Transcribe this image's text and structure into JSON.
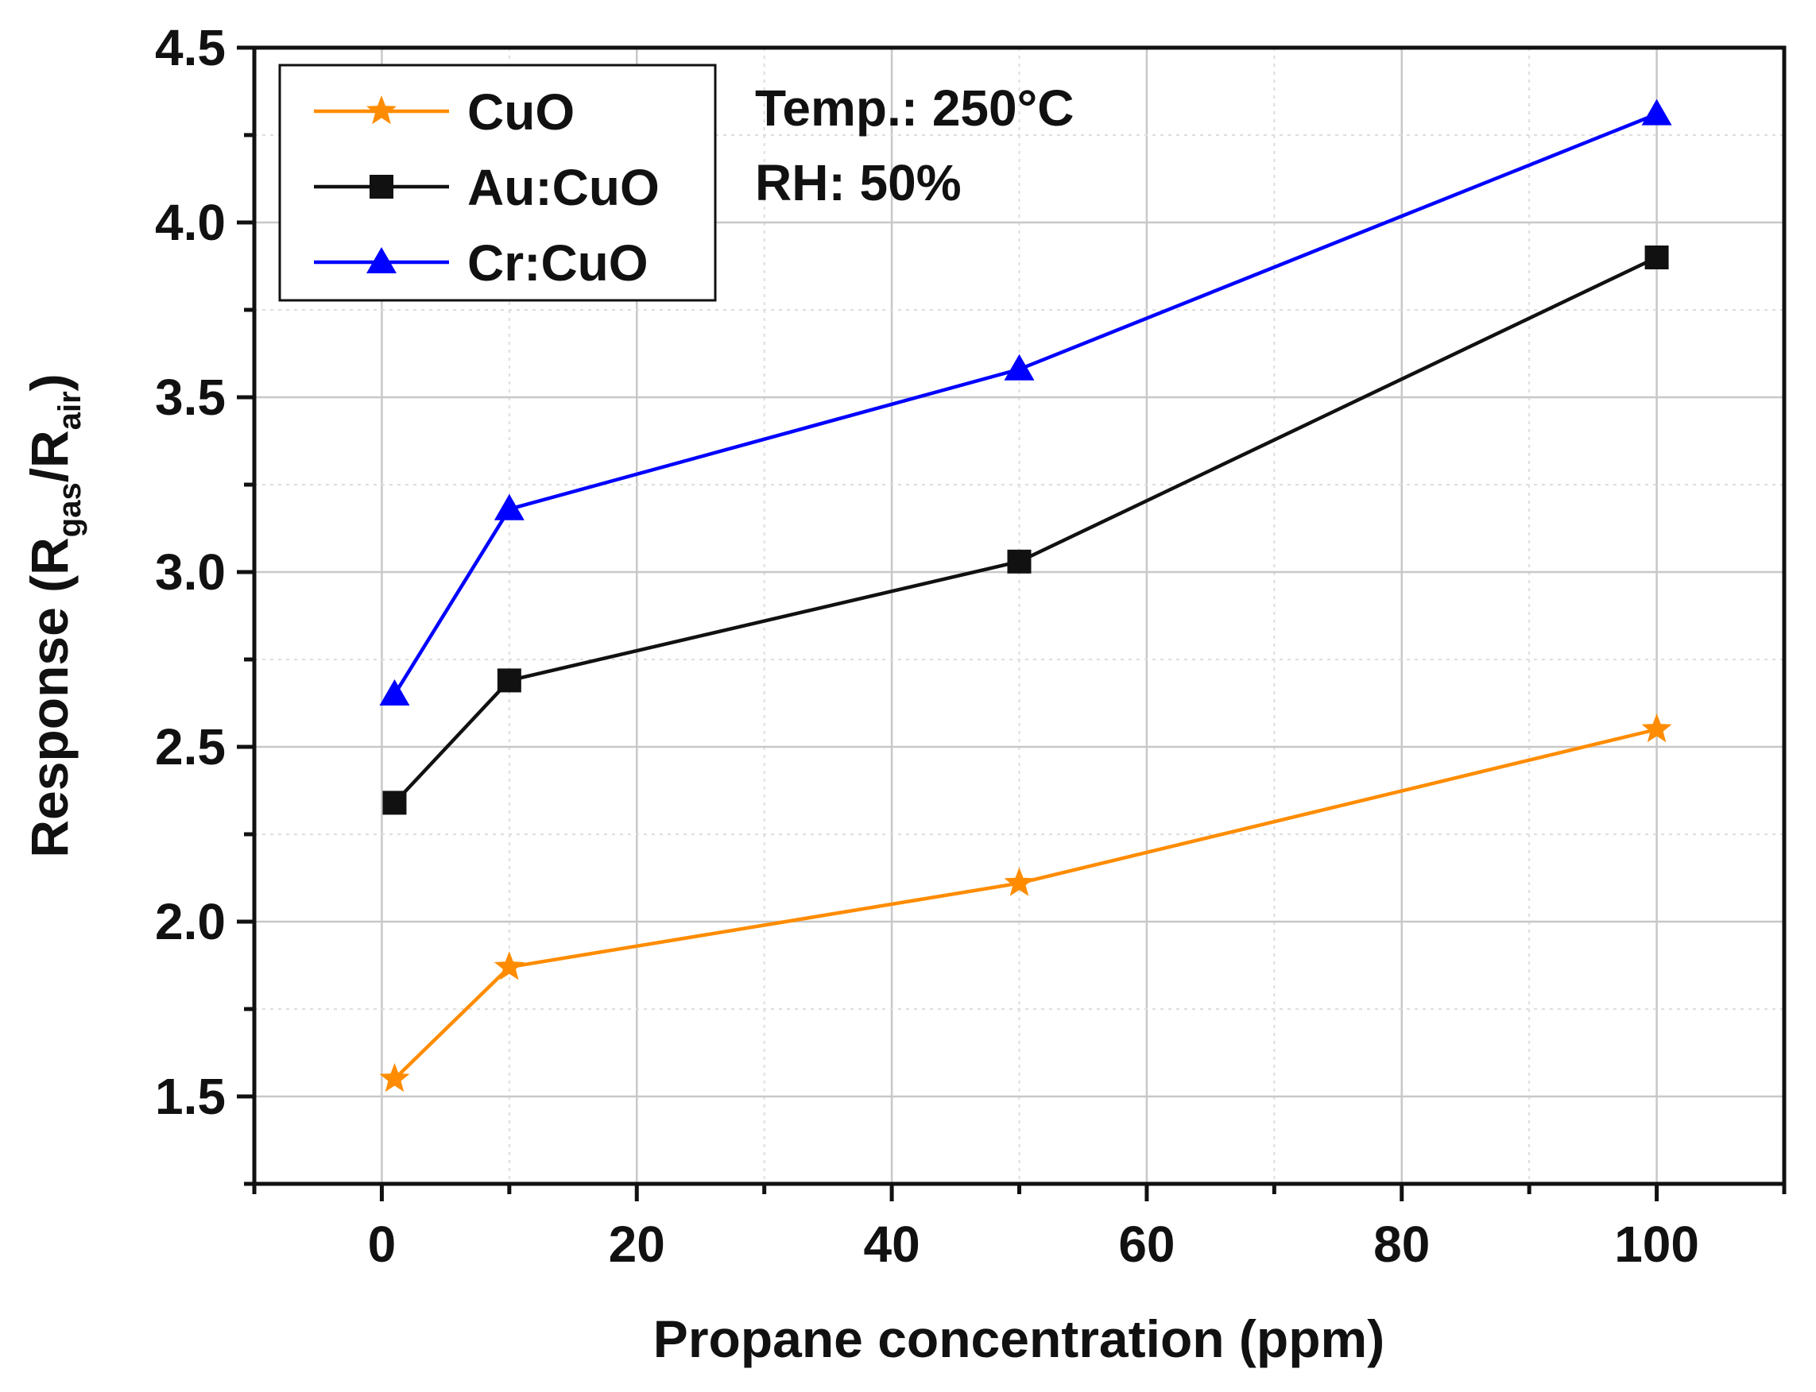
{
  "chart_data": {
    "type": "line",
    "title": "",
    "xlabel": "Propane concentration (ppm)",
    "ylabel": {
      "main": "Response (R",
      "sub1": "gas",
      "mid": "/R",
      "sub2": "air",
      "end": ")"
    },
    "xlim": [
      -10,
      110
    ],
    "ylim": [
      1.25,
      4.5
    ],
    "x_ticks": [
      0,
      20,
      40,
      60,
      80,
      100
    ],
    "y_ticks": [
      1.5,
      2.0,
      2.5,
      3.0,
      3.5,
      4.0,
      4.5
    ],
    "x_tick_labels": [
      "0",
      "20",
      "40",
      "60",
      "80",
      "100"
    ],
    "y_tick_labels": [
      "1.5",
      "2.0",
      "2.5",
      "3.0",
      "3.5",
      "4.0",
      "4.5"
    ],
    "grid": true,
    "legend_position": "top-left",
    "series": [
      {
        "name": "CuO",
        "color": "#ff8c00",
        "marker": "star",
        "x": [
          1,
          10,
          50,
          100
        ],
        "y": [
          1.55,
          1.87,
          2.11,
          2.55
        ]
      },
      {
        "name": "Au:CuO",
        "color": "#111111",
        "marker": "square",
        "x": [
          1,
          10,
          50,
          100
        ],
        "y": [
          2.34,
          2.69,
          3.03,
          3.9
        ]
      },
      {
        "name": "Cr:CuO",
        "color": "#0000ff",
        "marker": "triangle",
        "x": [
          1,
          10,
          50,
          100
        ],
        "y": [
          2.65,
          3.18,
          3.58,
          4.31
        ]
      }
    ],
    "annotations": [
      "Temp.: 250°C",
      "RH: 50%"
    ]
  }
}
